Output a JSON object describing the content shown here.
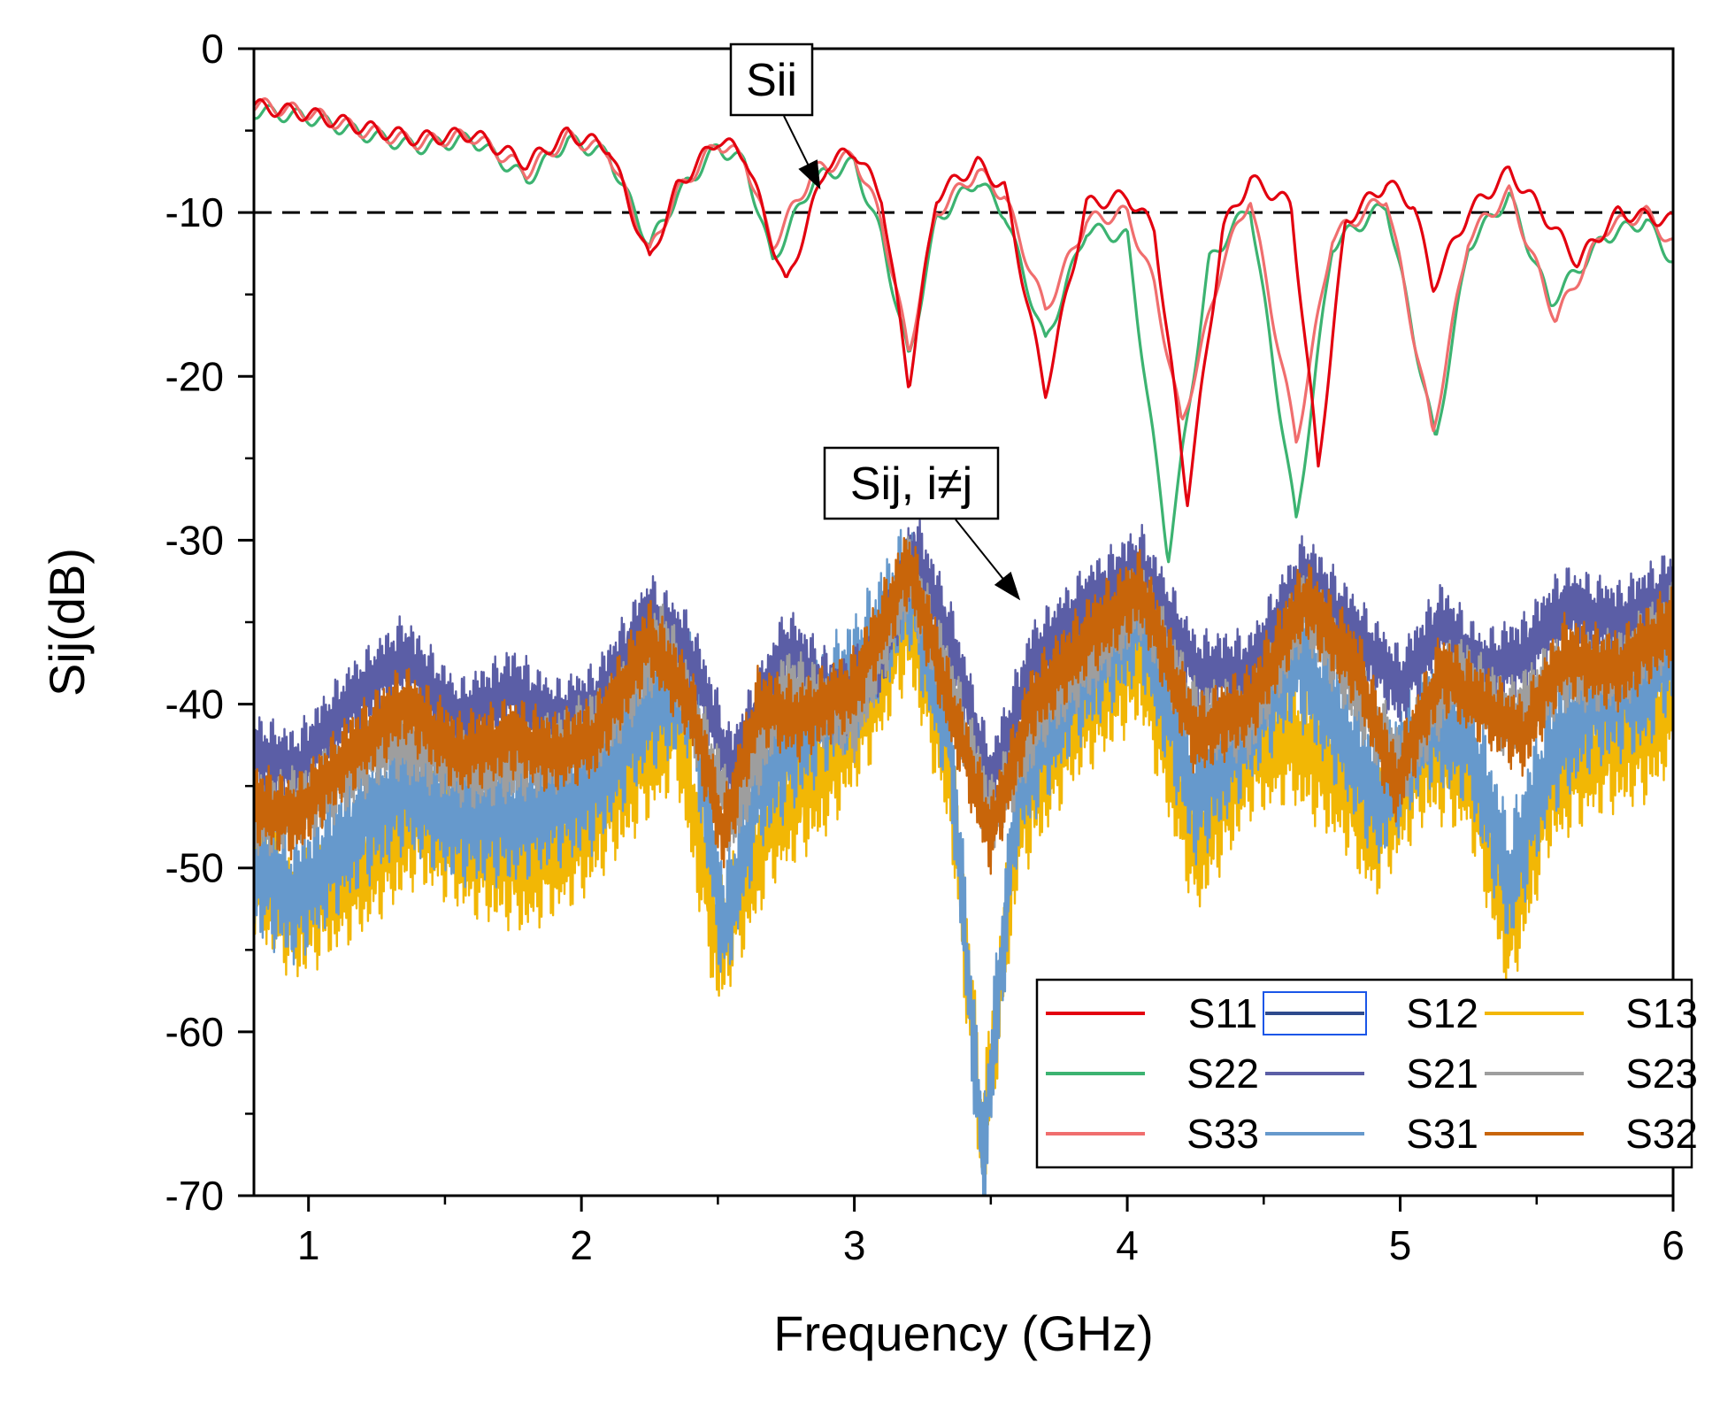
{
  "chart_data": {
    "type": "line",
    "title": "",
    "xlabel": "Frequency (GHz)",
    "ylabel": "Sij(dB)",
    "xlim": [
      0.8,
      6.0
    ],
    "ylim": [
      -70,
      0
    ],
    "xticks": [
      1,
      2,
      3,
      4,
      5,
      6
    ],
    "xtick_labels": [
      "1",
      "2",
      "3",
      "4",
      "5",
      "6"
    ],
    "yticks": [
      0,
      -10,
      -20,
      -30,
      -40,
      -50,
      -60,
      -70
    ],
    "ytick_labels": [
      "0",
      "-10",
      "-20",
      "-30",
      "-40",
      "-50",
      "-60",
      "-70"
    ],
    "reference_line": {
      "y": -10,
      "style": "dashed",
      "color": "#000000"
    },
    "annotations": [
      {
        "text": "Sii",
        "target": [
          2.87,
          -8.4
        ]
      },
      {
        "text": "Sij, i≠j",
        "target": [
          3.6,
          -33.5
        ]
      }
    ],
    "legend_position": "bottom-right",
    "legend_columns": 3,
    "series": [
      {
        "name": "S11",
        "color": "#e3000f",
        "x": [
          0.8,
          1.0,
          1.2,
          1.4,
          1.6,
          1.8,
          1.95,
          2.1,
          2.25,
          2.35,
          2.5,
          2.6,
          2.75,
          2.9,
          3.0,
          3.1,
          3.2,
          3.3,
          3.45,
          3.55,
          3.7,
          3.85,
          4.0,
          4.1,
          4.22,
          4.35,
          4.45,
          4.6,
          4.7,
          4.8,
          4.95,
          5.05,
          5.12,
          5.25,
          5.4,
          5.5,
          5.65,
          5.8,
          6.0
        ],
        "y": [
          -3.5,
          -4.0,
          -4.8,
          -5.5,
          -5.2,
          -7.0,
          -5.2,
          -6.0,
          -13.0,
          -8.5,
          -5.5,
          -6.5,
          -14.5,
          -7.0,
          -6.2,
          -9.0,
          -20.5,
          -9.0,
          -7.0,
          -8.5,
          -21.0,
          -9.5,
          -9.0,
          -11.0,
          -27.5,
          -11.0,
          -8.0,
          -9.5,
          -25.5,
          -10.5,
          -8.2,
          -9.5,
          -14.5,
          -10.0,
          -7.5,
          -9.5,
          -13.0,
          -10.0,
          -10.5
        ]
      },
      {
        "name": "S12",
        "color": "#2e4a8c",
        "y": [],
        "x": []
      },
      {
        "name": "S13",
        "color": "#f2b705",
        "x": [
          0.8,
          0.95,
          1.2,
          1.4,
          1.6,
          1.8,
          2.0,
          2.2,
          2.35,
          2.5,
          2.7,
          2.9,
          3.05,
          3.2,
          3.35,
          3.47,
          3.6,
          3.8,
          4.05,
          4.25,
          4.45,
          4.6,
          4.8,
          4.9,
          5.1,
          5.25,
          5.4,
          5.55,
          5.7,
          5.9,
          6.0
        ],
        "y": [
          -50,
          -53,
          -50,
          -47,
          -49,
          -50,
          -48,
          -44,
          -41,
          -55,
          -47,
          -44,
          -40,
          -34.5,
          -44,
          -67,
          -47,
          -41,
          -37,
          -49,
          -43,
          -42,
          -45,
          -48,
          -43,
          -44,
          -54,
          -45,
          -43,
          -42,
          -40
        ]
      },
      {
        "name": "S22",
        "color": "#3cb371",
        "x": [
          0.8,
          1.0,
          1.2,
          1.4,
          1.6,
          1.8,
          1.95,
          2.1,
          2.25,
          2.35,
          2.5,
          2.6,
          2.7,
          2.85,
          3.0,
          3.1,
          3.2,
          3.3,
          3.45,
          3.55,
          3.7,
          3.85,
          4.0,
          4.15,
          4.3,
          4.45,
          4.62,
          4.75,
          4.95,
          5.13,
          5.25,
          5.4,
          5.55,
          5.75,
          5.9,
          6.0
        ],
        "y": [
          -3.8,
          -4.2,
          -5.2,
          -6.0,
          -5.5,
          -8.0,
          -5.6,
          -6.5,
          -12.0,
          -9.0,
          -6.0,
          -7.0,
          -13.0,
          -8.0,
          -7.0,
          -11.5,
          -19.0,
          -10.5,
          -8.0,
          -10.0,
          -18.0,
          -11.0,
          -11.5,
          -31.0,
          -13.0,
          -9.5,
          -29.0,
          -12.0,
          -9.5,
          -24.0,
          -12.0,
          -9.0,
          -15.5,
          -11.5,
          -10.5,
          -13.0
        ]
      },
      {
        "name": "S21",
        "color": "#5b5ea6",
        "x": [
          0.8,
          0.95,
          1.15,
          1.35,
          1.55,
          1.75,
          1.9,
          2.05,
          2.25,
          2.4,
          2.55,
          2.75,
          2.95,
          3.1,
          3.22,
          3.35,
          3.5,
          3.65,
          3.85,
          4.05,
          4.25,
          4.45,
          4.65,
          4.85,
          5.0,
          5.15,
          5.3,
          5.45,
          5.6,
          5.8,
          6.0
        ],
        "y": [
          -43,
          -44,
          -40,
          -37,
          -41,
          -39,
          -41,
          -40,
          -34.5,
          -37,
          -44,
          -36.5,
          -40,
          -37,
          -30.5,
          -36,
          -45,
          -37.5,
          -34,
          -31.5,
          -38,
          -38,
          -32,
          -36,
          -39,
          -35,
          -38,
          -37,
          -34,
          -35,
          -33
        ]
      },
      {
        "name": "S23",
        "color": "#9e9e9e",
        "x": [
          0.8,
          1.0,
          1.3,
          1.6,
          1.9,
          2.1,
          2.3,
          2.55,
          2.75,
          3.0,
          3.2,
          3.35,
          3.5,
          3.7,
          3.9,
          4.05,
          4.25,
          4.45,
          4.65,
          4.8,
          5.0,
          5.2,
          5.4,
          5.6,
          5.8,
          6.0
        ],
        "y": [
          -47,
          -46,
          -42,
          -44,
          -43,
          -41,
          -36,
          -47,
          -39,
          -41,
          -32,
          -39,
          -47,
          -40,
          -36.5,
          -33.5,
          -41,
          -41,
          -34,
          -38,
          -44,
          -38,
          -41,
          -38,
          -38,
          -35
        ]
      },
      {
        "name": "S33",
        "color": "#f06e6e",
        "x": [
          0.8,
          1.0,
          1.2,
          1.4,
          1.6,
          1.8,
          1.95,
          2.1,
          2.25,
          2.35,
          2.5,
          2.6,
          2.7,
          2.85,
          3.0,
          3.1,
          3.2,
          3.3,
          3.45,
          3.55,
          3.7,
          3.85,
          4.0,
          4.1,
          4.2,
          4.35,
          4.45,
          4.62,
          4.75,
          4.95,
          5.12,
          5.25,
          5.4,
          5.57,
          5.75,
          5.9,
          6.0
        ],
        "y": [
          -3.4,
          -3.9,
          -5.0,
          -5.7,
          -5.3,
          -7.5,
          -5.4,
          -6.3,
          -12.5,
          -8.8,
          -5.7,
          -6.8,
          -12.0,
          -7.5,
          -6.5,
          -10.5,
          -18.5,
          -10.0,
          -7.5,
          -9.0,
          -16.0,
          -10.5,
          -10.0,
          -14.5,
          -23.0,
          -13.0,
          -9.0,
          -24.0,
          -11.5,
          -9.0,
          -23.5,
          -11.5,
          -8.8,
          -16.5,
          -11.0,
          -10.0,
          -12.0
        ]
      },
      {
        "name": "S31",
        "color": "#6699cc",
        "x": [
          0.8,
          0.95,
          1.15,
          1.35,
          1.55,
          1.75,
          1.9,
          2.05,
          2.25,
          2.4,
          2.52,
          2.65,
          2.8,
          3.0,
          3.2,
          3.35,
          3.47,
          3.6,
          3.8,
          4.05,
          4.25,
          4.45,
          4.62,
          4.8,
          4.92,
          5.1,
          5.25,
          5.4,
          5.55,
          5.7,
          5.9,
          6.0
        ],
        "y": [
          -50,
          -52,
          -48,
          -45,
          -47,
          -47,
          -46,
          -45,
          -40,
          -39,
          -54,
          -45,
          -42,
          -38.5,
          -32.5,
          -42,
          -68,
          -45,
          -39,
          -34.5,
          -46,
          -41,
          -37,
          -42,
          -46,
          -41,
          -42,
          -51,
          -43,
          -40,
          -39,
          -36
        ]
      },
      {
        "name": "S32",
        "color": "#c8650a",
        "x": [
          0.8,
          0.95,
          1.15,
          1.35,
          1.55,
          1.75,
          1.9,
          2.05,
          2.25,
          2.4,
          2.52,
          2.65,
          2.8,
          3.0,
          3.2,
          3.35,
          3.5,
          3.65,
          3.85,
          4.05,
          4.25,
          4.45,
          4.65,
          4.85,
          4.98,
          5.15,
          5.3,
          5.45,
          5.6,
          5.8,
          6.0
        ],
        "y": [
          -46,
          -47,
          -43,
          -40,
          -43,
          -42,
          -43,
          -42,
          -36,
          -40,
          -48,
          -40,
          -41,
          -39,
          -31.5,
          -40,
          -48,
          -40,
          -36,
          -33,
          -42,
          -40,
          -33.5,
          -38,
          -45,
          -38,
          -40,
          -42,
          -37,
          -38,
          -35
        ]
      }
    ]
  }
}
